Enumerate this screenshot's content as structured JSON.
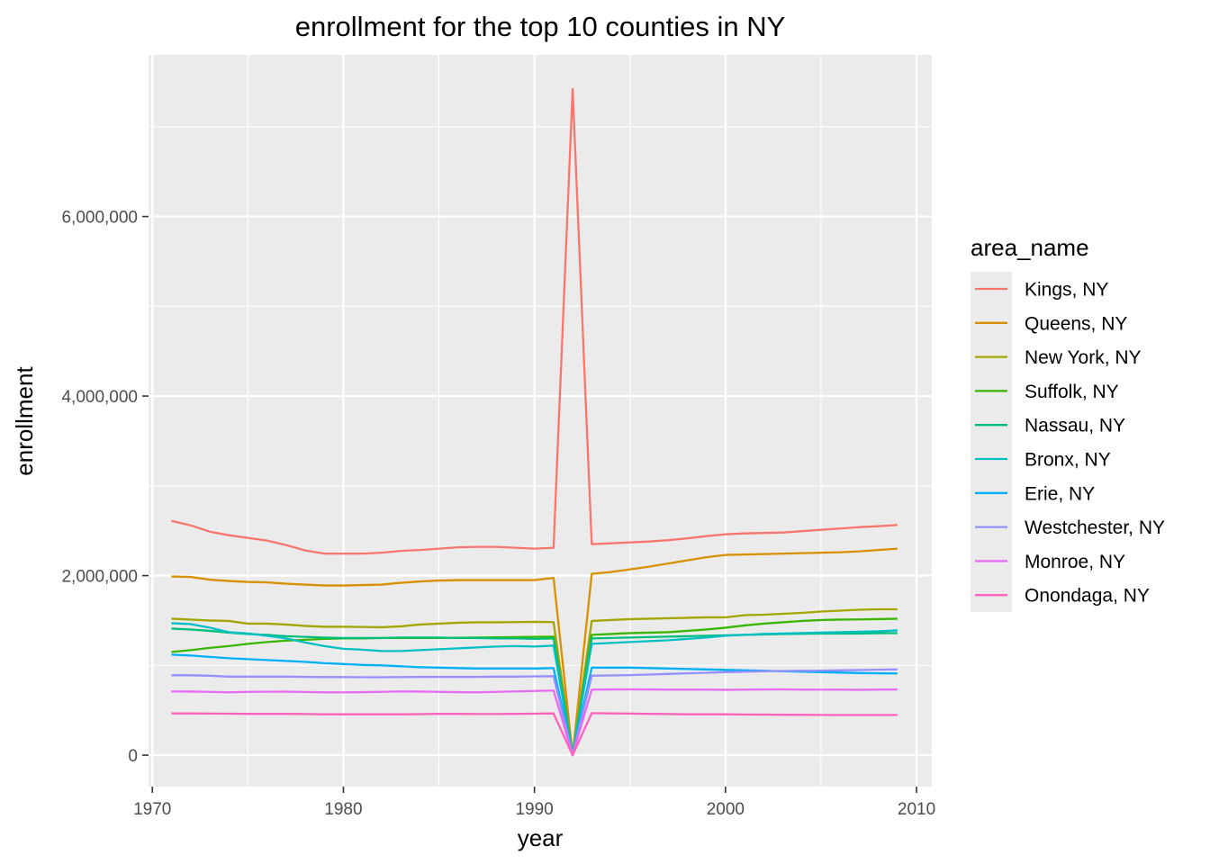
{
  "chart_data": {
    "type": "line",
    "title": "enrollment for the top 10 counties in NY",
    "xlabel": "year",
    "ylabel": "enrollment",
    "xlim": [
      1969.8,
      2010.8
    ],
    "ylim": [
      -350000,
      7800000
    ],
    "x_ticks": [
      1970,
      1980,
      1990,
      2000,
      2010
    ],
    "x_tick_labels": [
      "1970",
      "1980",
      "1990",
      "2000",
      "2010"
    ],
    "y_ticks": [
      0,
      2000000,
      4000000,
      6000000
    ],
    "y_tick_labels": [
      "0",
      "2,000,000",
      "4,000,000",
      "6,000,000"
    ],
    "grid": true,
    "legend": {
      "title": "area_name",
      "placement": "right"
    },
    "x": [
      1971,
      1972,
      1973,
      1974,
      1975,
      1976,
      1977,
      1978,
      1979,
      1980,
      1981,
      1982,
      1983,
      1984,
      1985,
      1986,
      1987,
      1988,
      1989,
      1990,
      1991,
      1992,
      1993,
      1994,
      1995,
      1996,
      1997,
      1998,
      1999,
      2000,
      2001,
      2002,
      2003,
      2004,
      2005,
      2006,
      2007,
      2008,
      2009
    ],
    "series": [
      {
        "name": "Kings, NY",
        "color": "#F8766D",
        "values": [
          2610000,
          2560000,
          2490000,
          2450000,
          2420000,
          2390000,
          2340000,
          2280000,
          2245000,
          2245000,
          2245000,
          2255000,
          2275000,
          2285000,
          2300000,
          2315000,
          2320000,
          2320000,
          2310000,
          2300000,
          2310000,
          7420000,
          2350000,
          2360000,
          2370000,
          2380000,
          2395000,
          2415000,
          2440000,
          2460000,
          2470000,
          2475000,
          2480000,
          2495000,
          2510000,
          2525000,
          2540000,
          2550000,
          2565000
        ]
      },
      {
        "name": "Queens, NY",
        "color": "#D89000",
        "values": [
          1990000,
          1985000,
          1955000,
          1940000,
          1930000,
          1925000,
          1910000,
          1900000,
          1890000,
          1890000,
          1895000,
          1900000,
          1920000,
          1935000,
          1945000,
          1950000,
          1950000,
          1950000,
          1950000,
          1950000,
          1975000,
          0,
          2020000,
          2040000,
          2070000,
          2100000,
          2135000,
          2170000,
          2205000,
          2230000,
          2235000,
          2240000,
          2245000,
          2250000,
          2255000,
          2260000,
          2270000,
          2285000,
          2300000
        ]
      },
      {
        "name": "New York, NY",
        "color": "#A3A500",
        "values": [
          1520000,
          1510000,
          1500000,
          1495000,
          1465000,
          1465000,
          1455000,
          1440000,
          1430000,
          1430000,
          1428000,
          1425000,
          1435000,
          1455000,
          1465000,
          1475000,
          1480000,
          1480000,
          1482000,
          1485000,
          1482000,
          0,
          1495000,
          1505000,
          1515000,
          1520000,
          1525000,
          1530000,
          1535000,
          1535000,
          1560000,
          1565000,
          1575000,
          1585000,
          1600000,
          1610000,
          1620000,
          1625000,
          1625000
        ]
      },
      {
        "name": "Suffolk, NY",
        "color": "#39B600",
        "values": [
          1150000,
          1170000,
          1195000,
          1215000,
          1240000,
          1260000,
          1275000,
          1285000,
          1295000,
          1300000,
          1300000,
          1305000,
          1305000,
          1305000,
          1305000,
          1308000,
          1310000,
          1312000,
          1315000,
          1318000,
          1320000,
          0,
          1340000,
          1350000,
          1360000,
          1365000,
          1370000,
          1385000,
          1400000,
          1420000,
          1445000,
          1465000,
          1480000,
          1495000,
          1505000,
          1510000,
          1512000,
          1515000,
          1520000
        ]
      },
      {
        "name": "Nassau, NY",
        "color": "#00BF7D",
        "values": [
          1410000,
          1400000,
          1385000,
          1365000,
          1350000,
          1340000,
          1325000,
          1318000,
          1310000,
          1305000,
          1305000,
          1305000,
          1310000,
          1310000,
          1310000,
          1305000,
          1305000,
          1300000,
          1300000,
          1295000,
          1300000,
          0,
          1300000,
          1305000,
          1310000,
          1315000,
          1320000,
          1325000,
          1330000,
          1335000,
          1340000,
          1345000,
          1350000,
          1352000,
          1355000,
          1355000,
          1355000,
          1358000,
          1360000
        ]
      },
      {
        "name": "Bronx, NY",
        "color": "#00BFC4",
        "values": [
          1470000,
          1460000,
          1420000,
          1370000,
          1355000,
          1330000,
          1300000,
          1255000,
          1215000,
          1185000,
          1175000,
          1160000,
          1160000,
          1170000,
          1180000,
          1190000,
          1200000,
          1210000,
          1215000,
          1210000,
          1220000,
          0,
          1240000,
          1250000,
          1260000,
          1270000,
          1280000,
          1295000,
          1310000,
          1330000,
          1340000,
          1350000,
          1355000,
          1360000,
          1365000,
          1370000,
          1375000,
          1380000,
          1390000
        ]
      },
      {
        "name": "Erie, NY",
        "color": "#00B0F6",
        "values": [
          1120000,
          1110000,
          1095000,
          1080000,
          1070000,
          1060000,
          1050000,
          1040000,
          1025000,
          1015000,
          1005000,
          1000000,
          990000,
          980000,
          975000,
          970000,
          965000,
          965000,
          965000,
          965000,
          970000,
          0,
          975000,
          975000,
          975000,
          970000,
          965000,
          960000,
          955000,
          950000,
          945000,
          940000,
          935000,
          930000,
          925000,
          920000,
          915000,
          912000,
          910000
        ]
      },
      {
        "name": "Westchester, NY",
        "color": "#9590FF",
        "values": [
          890000,
          890000,
          885000,
          875000,
          875000,
          875000,
          875000,
          872000,
          870000,
          870000,
          868000,
          868000,
          870000,
          872000,
          872000,
          872000,
          872000,
          875000,
          875000,
          878000,
          880000,
          0,
          885000,
          888000,
          892000,
          898000,
          905000,
          912000,
          918000,
          925000,
          930000,
          935000,
          938000,
          940000,
          942000,
          945000,
          948000,
          952000,
          955000
        ]
      },
      {
        "name": "Monroe, NY",
        "color": "#E76BF3",
        "values": [
          710000,
          708000,
          705000,
          700000,
          705000,
          706000,
          707000,
          704000,
          700000,
          700000,
          702000,
          705000,
          710000,
          708000,
          705000,
          702000,
          700000,
          705000,
          710000,
          715000,
          720000,
          0,
          730000,
          732000,
          733000,
          732000,
          730000,
          730000,
          730000,
          728000,
          730000,
          732000,
          733000,
          730000,
          730000,
          730000,
          728000,
          730000,
          732000
        ]
      },
      {
        "name": "Onondaga, NY",
        "color": "#FF62BC",
        "values": [
          465000,
          465000,
          463000,
          462000,
          460000,
          460000,
          460000,
          458000,
          455000,
          455000,
          455000,
          455000,
          455000,
          457000,
          460000,
          460000,
          458000,
          458000,
          460000,
          462000,
          465000,
          0,
          468000,
          465000,
          463000,
          460000,
          458000,
          455000,
          455000,
          455000,
          453000,
          452000,
          450000,
          450000,
          448000,
          447000,
          447000,
          447000,
          448000
        ]
      }
    ]
  }
}
